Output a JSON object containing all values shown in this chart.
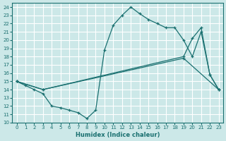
{
  "xlabel": "Humidex (Indice chaleur)",
  "xlim": [
    -0.5,
    23.5
  ],
  "ylim": [
    10,
    24.5
  ],
  "xticks": [
    0,
    1,
    2,
    3,
    4,
    5,
    6,
    7,
    8,
    9,
    10,
    11,
    12,
    13,
    14,
    15,
    16,
    17,
    18,
    19,
    20,
    21,
    22,
    23
  ],
  "yticks": [
    10,
    11,
    12,
    13,
    14,
    15,
    16,
    17,
    18,
    19,
    20,
    21,
    22,
    23,
    24
  ],
  "bg_color": "#cce8e8",
  "line_color": "#1a7070",
  "grid_color": "#ffffff",
  "line1_x": [
    0,
    1,
    2,
    3,
    4,
    5,
    6,
    7,
    8,
    9,
    10,
    11,
    12,
    13,
    14,
    15,
    16,
    17,
    18,
    19,
    20,
    21,
    22,
    23
  ],
  "line1_y": [
    15,
    14.5,
    14,
    13.5,
    12,
    11.8,
    11.5,
    11.2,
    10.5,
    11.5,
    18.8,
    21.8,
    23.0,
    24.0,
    23.2,
    22.5,
    22.0,
    21.5,
    21.5,
    20.0,
    18.0,
    21.0,
    15.8,
    14.0
  ],
  "line2_x": [
    0,
    3,
    19,
    20,
    21,
    22,
    23
  ],
  "line2_y": [
    15,
    14,
    18,
    20.2,
    21.5,
    15.8,
    14.0
  ],
  "line3_x": [
    0,
    3,
    19,
    23
  ],
  "line3_y": [
    15,
    14,
    17.8,
    14.0
  ]
}
